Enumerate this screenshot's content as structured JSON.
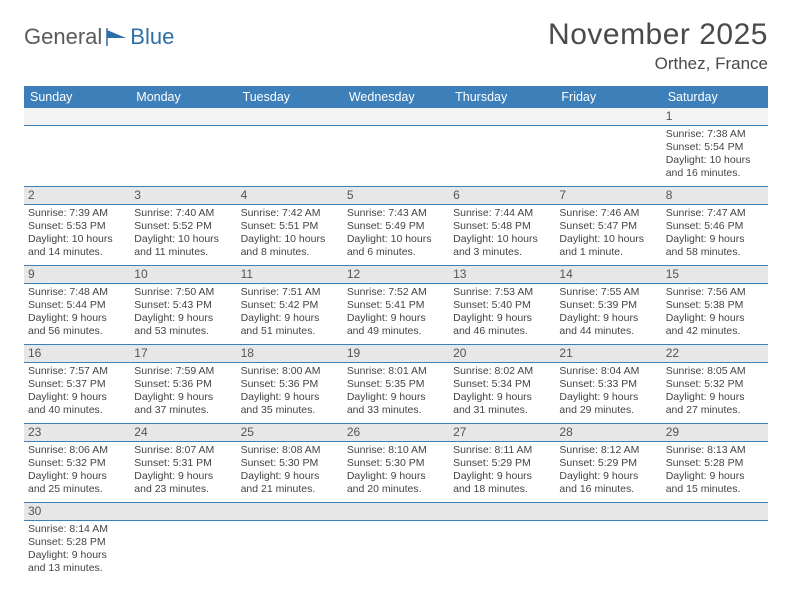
{
  "brand": {
    "part1": "General",
    "part2": "Blue"
  },
  "title": "November 2025",
  "location": "Orthez, France",
  "colors": {
    "header_bg": "#3c7fb9",
    "header_text": "#ffffff",
    "daynum_bg": "#e7e7e7",
    "text": "#444444",
    "accent": "#2f6fa8"
  },
  "typography": {
    "title_fontsize": 30,
    "location_fontsize": 17,
    "dayhead_fontsize": 12.5,
    "cell_fontsize": 10.5
  },
  "day_names": [
    "Sunday",
    "Monday",
    "Tuesday",
    "Wednesday",
    "Thursday",
    "Friday",
    "Saturday"
  ],
  "weeks": [
    [
      null,
      null,
      null,
      null,
      null,
      null,
      {
        "n": "1",
        "sr": "Sunrise: 7:38 AM",
        "ss": "Sunset: 5:54 PM",
        "d1": "Daylight: 10 hours",
        "d2": "and 16 minutes."
      }
    ],
    [
      {
        "n": "2",
        "sr": "Sunrise: 7:39 AM",
        "ss": "Sunset: 5:53 PM",
        "d1": "Daylight: 10 hours",
        "d2": "and 14 minutes."
      },
      {
        "n": "3",
        "sr": "Sunrise: 7:40 AM",
        "ss": "Sunset: 5:52 PM",
        "d1": "Daylight: 10 hours",
        "d2": "and 11 minutes."
      },
      {
        "n": "4",
        "sr": "Sunrise: 7:42 AM",
        "ss": "Sunset: 5:51 PM",
        "d1": "Daylight: 10 hours",
        "d2": "and 8 minutes."
      },
      {
        "n": "5",
        "sr": "Sunrise: 7:43 AM",
        "ss": "Sunset: 5:49 PM",
        "d1": "Daylight: 10 hours",
        "d2": "and 6 minutes."
      },
      {
        "n": "6",
        "sr": "Sunrise: 7:44 AM",
        "ss": "Sunset: 5:48 PM",
        "d1": "Daylight: 10 hours",
        "d2": "and 3 minutes."
      },
      {
        "n": "7",
        "sr": "Sunrise: 7:46 AM",
        "ss": "Sunset: 5:47 PM",
        "d1": "Daylight: 10 hours",
        "d2": "and 1 minute."
      },
      {
        "n": "8",
        "sr": "Sunrise: 7:47 AM",
        "ss": "Sunset: 5:46 PM",
        "d1": "Daylight: 9 hours",
        "d2": "and 58 minutes."
      }
    ],
    [
      {
        "n": "9",
        "sr": "Sunrise: 7:48 AM",
        "ss": "Sunset: 5:44 PM",
        "d1": "Daylight: 9 hours",
        "d2": "and 56 minutes."
      },
      {
        "n": "10",
        "sr": "Sunrise: 7:50 AM",
        "ss": "Sunset: 5:43 PM",
        "d1": "Daylight: 9 hours",
        "d2": "and 53 minutes."
      },
      {
        "n": "11",
        "sr": "Sunrise: 7:51 AM",
        "ss": "Sunset: 5:42 PM",
        "d1": "Daylight: 9 hours",
        "d2": "and 51 minutes."
      },
      {
        "n": "12",
        "sr": "Sunrise: 7:52 AM",
        "ss": "Sunset: 5:41 PM",
        "d1": "Daylight: 9 hours",
        "d2": "and 49 minutes."
      },
      {
        "n": "13",
        "sr": "Sunrise: 7:53 AM",
        "ss": "Sunset: 5:40 PM",
        "d1": "Daylight: 9 hours",
        "d2": "and 46 minutes."
      },
      {
        "n": "14",
        "sr": "Sunrise: 7:55 AM",
        "ss": "Sunset: 5:39 PM",
        "d1": "Daylight: 9 hours",
        "d2": "and 44 minutes."
      },
      {
        "n": "15",
        "sr": "Sunrise: 7:56 AM",
        "ss": "Sunset: 5:38 PM",
        "d1": "Daylight: 9 hours",
        "d2": "and 42 minutes."
      }
    ],
    [
      {
        "n": "16",
        "sr": "Sunrise: 7:57 AM",
        "ss": "Sunset: 5:37 PM",
        "d1": "Daylight: 9 hours",
        "d2": "and 40 minutes."
      },
      {
        "n": "17",
        "sr": "Sunrise: 7:59 AM",
        "ss": "Sunset: 5:36 PM",
        "d1": "Daylight: 9 hours",
        "d2": "and 37 minutes."
      },
      {
        "n": "18",
        "sr": "Sunrise: 8:00 AM",
        "ss": "Sunset: 5:36 PM",
        "d1": "Daylight: 9 hours",
        "d2": "and 35 minutes."
      },
      {
        "n": "19",
        "sr": "Sunrise: 8:01 AM",
        "ss": "Sunset: 5:35 PM",
        "d1": "Daylight: 9 hours",
        "d2": "and 33 minutes."
      },
      {
        "n": "20",
        "sr": "Sunrise: 8:02 AM",
        "ss": "Sunset: 5:34 PM",
        "d1": "Daylight: 9 hours",
        "d2": "and 31 minutes."
      },
      {
        "n": "21",
        "sr": "Sunrise: 8:04 AM",
        "ss": "Sunset: 5:33 PM",
        "d1": "Daylight: 9 hours",
        "d2": "and 29 minutes."
      },
      {
        "n": "22",
        "sr": "Sunrise: 8:05 AM",
        "ss": "Sunset: 5:32 PM",
        "d1": "Daylight: 9 hours",
        "d2": "and 27 minutes."
      }
    ],
    [
      {
        "n": "23",
        "sr": "Sunrise: 8:06 AM",
        "ss": "Sunset: 5:32 PM",
        "d1": "Daylight: 9 hours",
        "d2": "and 25 minutes."
      },
      {
        "n": "24",
        "sr": "Sunrise: 8:07 AM",
        "ss": "Sunset: 5:31 PM",
        "d1": "Daylight: 9 hours",
        "d2": "and 23 minutes."
      },
      {
        "n": "25",
        "sr": "Sunrise: 8:08 AM",
        "ss": "Sunset: 5:30 PM",
        "d1": "Daylight: 9 hours",
        "d2": "and 21 minutes."
      },
      {
        "n": "26",
        "sr": "Sunrise: 8:10 AM",
        "ss": "Sunset: 5:30 PM",
        "d1": "Daylight: 9 hours",
        "d2": "and 20 minutes."
      },
      {
        "n": "27",
        "sr": "Sunrise: 8:11 AM",
        "ss": "Sunset: 5:29 PM",
        "d1": "Daylight: 9 hours",
        "d2": "and 18 minutes."
      },
      {
        "n": "28",
        "sr": "Sunrise: 8:12 AM",
        "ss": "Sunset: 5:29 PM",
        "d1": "Daylight: 9 hours",
        "d2": "and 16 minutes."
      },
      {
        "n": "29",
        "sr": "Sunrise: 8:13 AM",
        "ss": "Sunset: 5:28 PM",
        "d1": "Daylight: 9 hours",
        "d2": "and 15 minutes."
      }
    ],
    [
      {
        "n": "30",
        "sr": "Sunrise: 8:14 AM",
        "ss": "Sunset: 5:28 PM",
        "d1": "Daylight: 9 hours",
        "d2": "and 13 minutes."
      },
      null,
      null,
      null,
      null,
      null,
      null
    ]
  ]
}
